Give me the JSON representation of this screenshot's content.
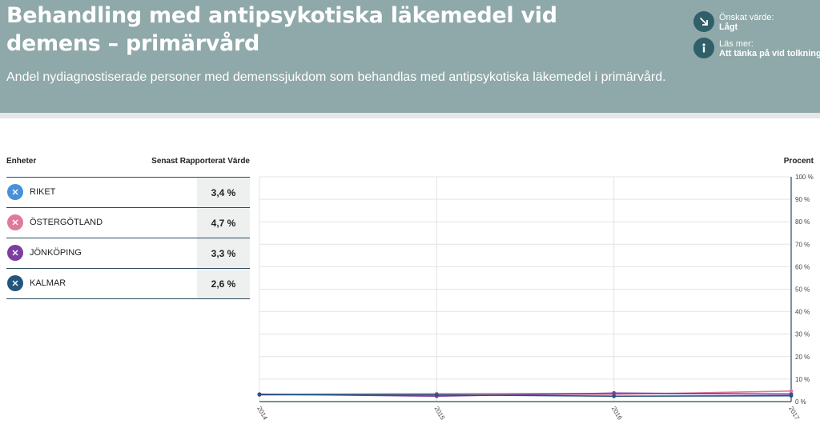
{
  "header": {
    "title": "Behandling med antipsykotiska läkemedel vid demens – primärvård",
    "subtitle": "Andel nydiagnostiserade personer med demenssjukdom som behandlas med antipsykotiska läkemedel i primärvård.",
    "desired": {
      "label": "Önskat värde:",
      "value": "Lågt",
      "icon": "arrow-down-right-icon"
    },
    "readmore": {
      "label": "Läs mer:",
      "value": "Att tänka på vid tolkning",
      "icon": "info-icon"
    },
    "colors": {
      "background": "#8fa8a9",
      "icon_circle": "#2f5f69"
    }
  },
  "table": {
    "col_units": "Enheter",
    "col_latest": "Senast Rapporterat Värde",
    "rows": [
      {
        "name": "RIKET",
        "value": "3,4 %",
        "color": "#4a90d9",
        "icon": "remove-icon"
      },
      {
        "name": "ÖSTERGÖTLAND",
        "value": "4,7 %",
        "color": "#e07a9a",
        "icon": "remove-icon"
      },
      {
        "name": "JÖNKÖPING",
        "value": "3,3 %",
        "color": "#7b3fa0",
        "icon": "remove-icon"
      },
      {
        "name": "KALMAR",
        "value": "2,6 %",
        "color": "#24557d",
        "icon": "remove-icon"
      }
    ]
  },
  "chart_data": {
    "type": "line",
    "x": [
      "2014",
      "2015",
      "2016",
      "2017"
    ],
    "ylabel": "Procent",
    "ylim": [
      0,
      100
    ],
    "yticks": [
      "0 %",
      "10 %",
      "20 %",
      "30 %",
      "40 %",
      "50 %",
      "60 %",
      "70 %",
      "80 %",
      "90 %",
      "100 %"
    ],
    "grid": true,
    "series": [
      {
        "name": "RIKET",
        "color": "#4a90d9",
        "values": [
          3.2,
          3.5,
          3.6,
          3.4
        ]
      },
      {
        "name": "ÖSTERGÖTLAND",
        "color": "#e07a9a",
        "values": [
          3.0,
          3.4,
          3.2,
          4.7
        ]
      },
      {
        "name": "JÖNKÖPING",
        "color": "#7b3fa0",
        "values": [
          3.3,
          2.4,
          3.8,
          3.3
        ]
      },
      {
        "name": "KALMAR",
        "color": "#24557d",
        "values": [
          3.1,
          3.0,
          2.4,
          2.6
        ]
      }
    ]
  }
}
